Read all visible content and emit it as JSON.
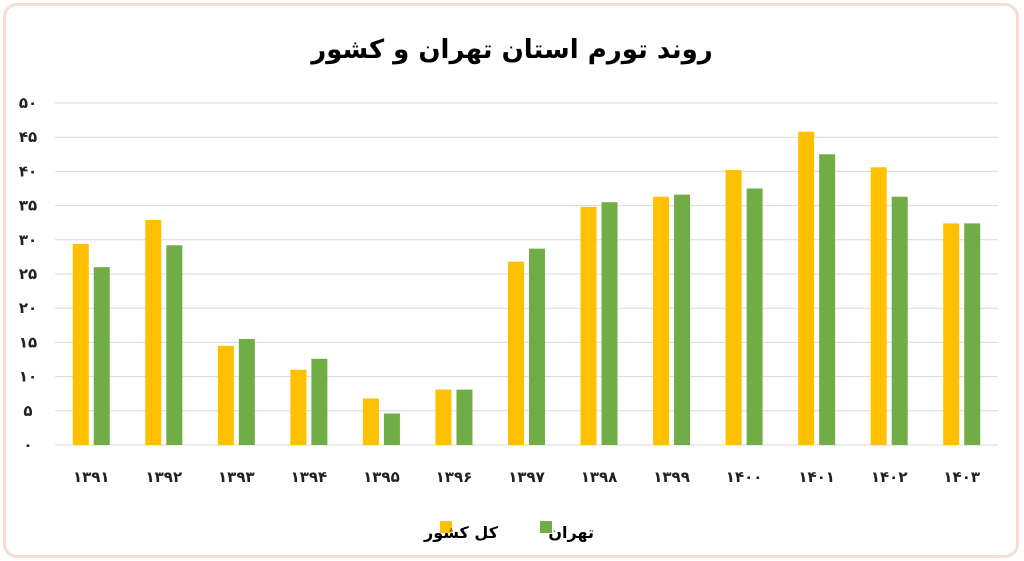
{
  "chart_data": {
    "type": "bar",
    "title": "روند تورم استان تهران و کشور",
    "xlabel": "",
    "ylabel": "",
    "categories": [
      "۱۳۹۱",
      "۱۳۹۲",
      "۱۳۹۳",
      "۱۳۹۴",
      "۱۳۹۵",
      "۱۳۹۶",
      "۱۳۹۷",
      "۱۳۹۸",
      "۱۳۹۹",
      "۱۴۰۰",
      "۱۴۰۱",
      "۱۴۰۲",
      "۱۴۰۳"
    ],
    "ylim": [
      0,
      50
    ],
    "yticks": [
      0,
      5,
      10,
      15,
      20,
      25,
      30,
      35,
      40,
      45,
      50
    ],
    "ytick_labels": [
      "۰",
      "۵",
      "۱۰",
      "۱۵",
      "۲۰",
      "۲۵",
      "۳۰",
      "۳۵",
      "۴۰",
      "۴۵",
      "۵۰"
    ],
    "grid": true,
    "legend_position": "bottom",
    "series": [
      {
        "name": "کل کشور",
        "color": "#ffc000",
        "values": [
          29.4,
          32.9,
          14.5,
          11.0,
          6.8,
          8.1,
          26.8,
          34.8,
          36.3,
          40.2,
          45.8,
          40.6,
          32.4
        ]
      },
      {
        "name": "تهران",
        "color": "#70ad47",
        "values": [
          26.0,
          29.2,
          15.5,
          12.6,
          4.6,
          8.1,
          28.7,
          35.5,
          36.6,
          37.5,
          42.5,
          36.3,
          32.4
        ]
      }
    ]
  }
}
